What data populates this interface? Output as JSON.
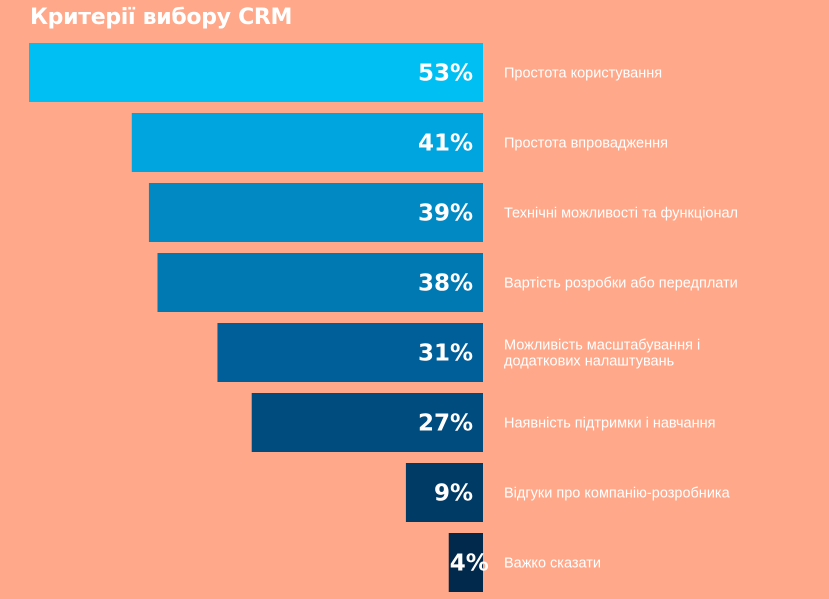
{
  "chart_data": {
    "type": "bar",
    "orientation": "horizontal",
    "title": "Критерії вибору CRM",
    "categories": [
      "Простота користування",
      "Простота впровадження",
      "Технічні можливості та функціонал",
      "Вартість розробки або передплати",
      "Можливість масштабування і додаткових налаштувань",
      "Наявність підтримки і навчання",
      "Відгуки про компанію-розробника",
      "Важко сказати"
    ],
    "label_lines": [
      [
        "Простота користування"
      ],
      [
        "Простота впровадження"
      ],
      [
        "Технічні можливості та функціонал"
      ],
      [
        "Вартість розробки або передплати"
      ],
      [
        "Можливість масштабування і",
        "додаткових налаштувань"
      ],
      [
        "Наявність підтримки і навчання"
      ],
      [
        "Відгуки про компанію-розробника"
      ],
      [
        "Важко сказати"
      ]
    ],
    "values": [
      53,
      41,
      39,
      38,
      31,
      27,
      9,
      4
    ],
    "value_labels": [
      "53%",
      "41%",
      "39%",
      "38%",
      "31%",
      "27%",
      "9%",
      "4%"
    ],
    "value_unit": "%",
    "xlim": [
      0,
      53
    ],
    "bar_colors": [
      "#00BFF2",
      "#00A5E0",
      "#0089C3",
      "#0079B3",
      "#005E98",
      "#004C7E",
      "#003B66",
      "#00294B"
    ],
    "label_color": "#FFFFFF",
    "background_color": "#FFA88A",
    "grid": false,
    "legend": "none"
  }
}
